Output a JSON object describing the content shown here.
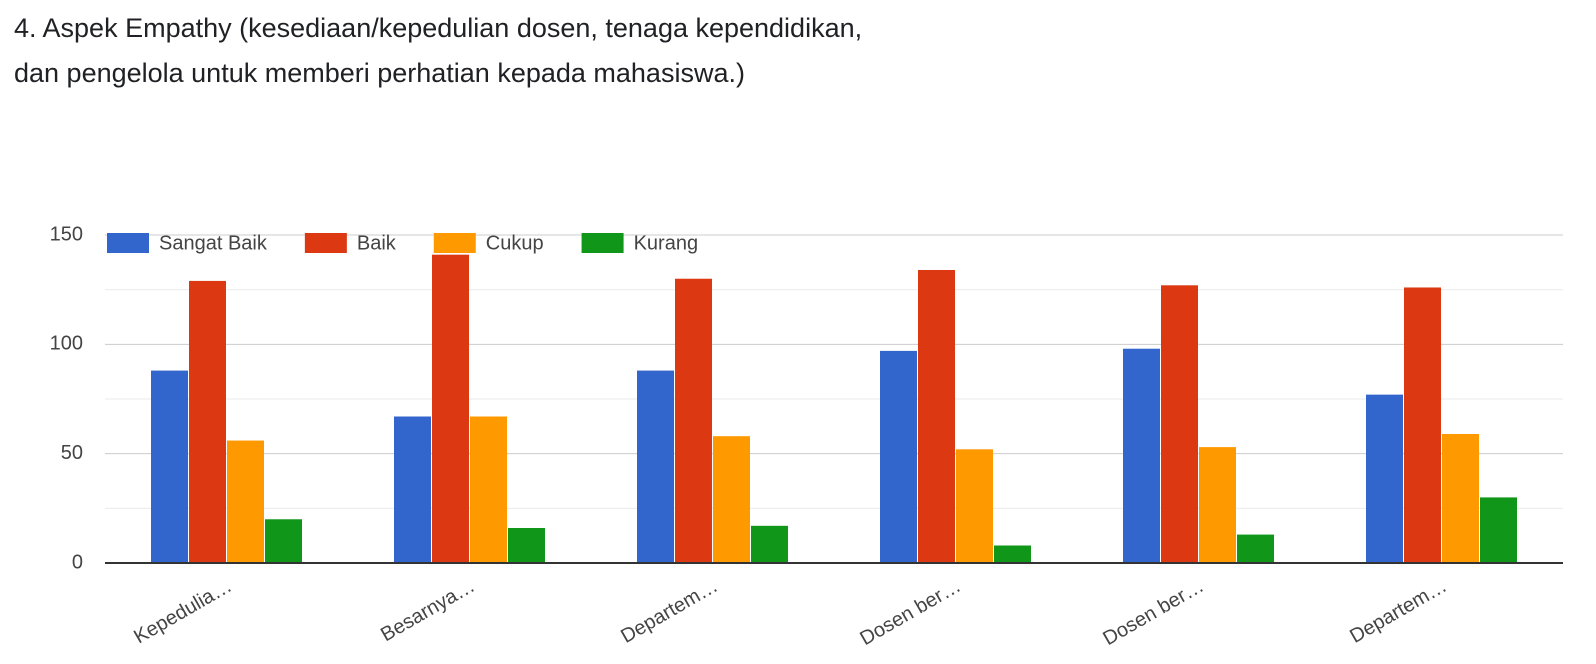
{
  "chart_data": {
    "type": "bar",
    "title": "4. Aspek Empathy (kesediaan/kepedulian dosen, tenaga kependidikan, dan pengelola untuk memberi perhatian kepada mahasiswa.)",
    "categories": [
      "Kepedulia…",
      "Besarnya…",
      "Departem…",
      "Dosen ber…",
      "Dosen ber…",
      "Departem…"
    ],
    "series": [
      {
        "name": "Sangat Baik",
        "color": "#3366cc",
        "values": [
          88,
          67,
          88,
          97,
          98,
          77
        ]
      },
      {
        "name": "Baik",
        "color": "#dc3912",
        "values": [
          129,
          141,
          130,
          134,
          127,
          126
        ]
      },
      {
        "name": "Cukup",
        "color": "#ff9900",
        "values": [
          56,
          67,
          58,
          52,
          53,
          59
        ]
      },
      {
        "name": "Kurang",
        "color": "#109618",
        "values": [
          20,
          16,
          17,
          8,
          13,
          30
        ]
      }
    ],
    "ylim": [
      0,
      150
    ],
    "yticks": [
      0,
      50,
      100,
      150
    ],
    "minor_gridlines": [
      25,
      75,
      125
    ],
    "grid": true,
    "legend": "top-left"
  }
}
